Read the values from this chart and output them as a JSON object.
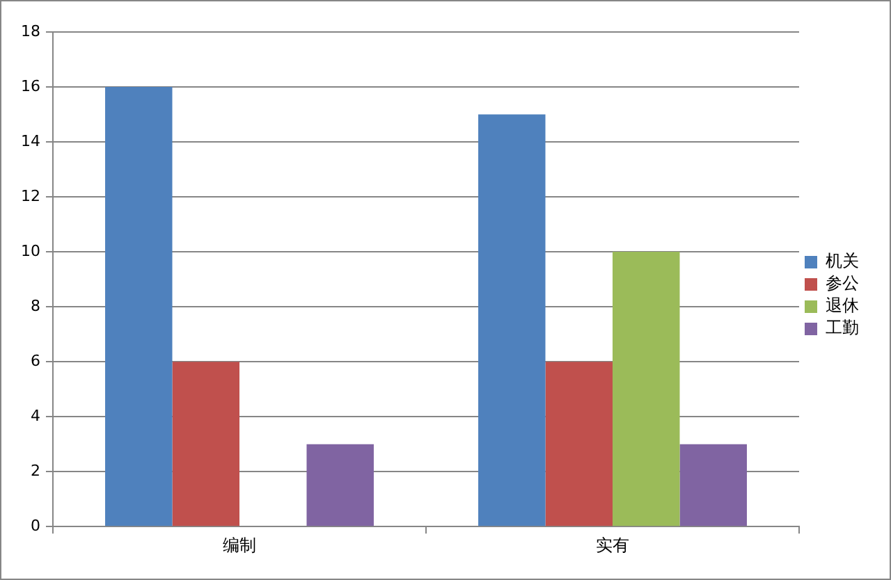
{
  "chart_data": {
    "type": "bar",
    "categories": [
      "编制",
      "实有"
    ],
    "series": [
      {
        "name": "机关",
        "color": "#4f81bd",
        "values": [
          16,
          15
        ]
      },
      {
        "name": "参公",
        "color": "#c0504d",
        "values": [
          6,
          6
        ]
      },
      {
        "name": "退休",
        "color": "#9bbb59",
        "values": [
          null,
          10
        ]
      },
      {
        "name": "工勤",
        "color": "#8064a2",
        "values": [
          3,
          3
        ]
      }
    ],
    "ylim": [
      0,
      18
    ],
    "yticks": [
      0,
      2,
      4,
      6,
      8,
      10,
      12,
      14,
      16,
      18
    ],
    "grid": "y",
    "legend": "right"
  }
}
